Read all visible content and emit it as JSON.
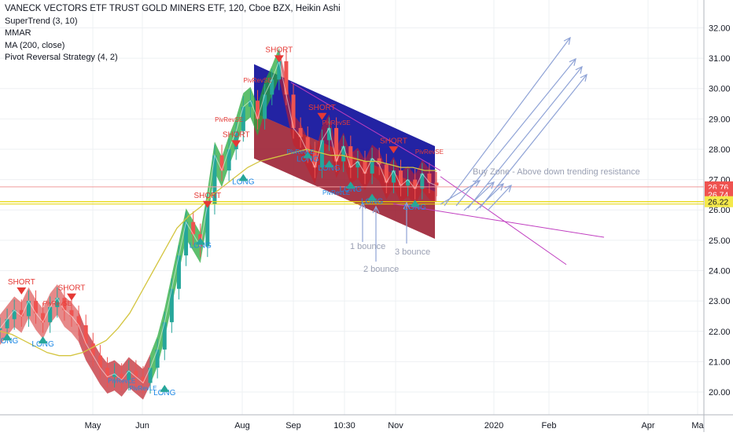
{
  "legend": {
    "title": "VANECK VECTORS ETF TRUST GOLD MINERS ETF, 120, Cboe BZX, Heikin Ashi",
    "indicators": [
      "SuperTrend (3, 10)",
      "MMAR",
      "MA (200, close)",
      "Pivot Reversal Strategy (4, 2)"
    ]
  },
  "chart_data": {
    "type": "line",
    "title": "VANECK VECTORS ETF TRUST GOLD MINERS ETF, 120, Cboe BZX, Heikin Ashi",
    "x_axis_labels": [
      "May",
      "Jun",
      "Aug",
      "Sep",
      "10:30",
      "Nov",
      "2020",
      "Feb",
      "Apr",
      "Ma"
    ],
    "y_axis": {
      "ticks": [
        20.0,
        21.0,
        22.0,
        23.0,
        24.0,
        25.0,
        26.0,
        27.0,
        28.0,
        29.0,
        30.0,
        31.0,
        32.0
      ],
      "range": [
        19.25,
        32.4
      ],
      "position": "right"
    },
    "price_badges": [
      {
        "value": "26.76",
        "color": "#ef5350"
      },
      {
        "value": "26.74",
        "color": "#ef5350"
      },
      {
        "value": "26.22",
        "color": "#f5e94a"
      }
    ],
    "series": [
      {
        "values": [
          22.1,
          22.4,
          22.7,
          22.5,
          23.0,
          22.6,
          22.3,
          22.8,
          23.1,
          22.7,
          22.5,
          22.2,
          21.6,
          21.2,
          20.8,
          20.5,
          20.6,
          20.4,
          20.7,
          20.5,
          20.3,
          20.8,
          21.4,
          22.3,
          23.4,
          24.5,
          25.6,
          25.2,
          24.8,
          26.2,
          27.8,
          27.3,
          28.0,
          28.6,
          29.4,
          29.6,
          29.0,
          29.8,
          30.3,
          30.9,
          29.8,
          28.7,
          28.4,
          27.9,
          27.4,
          28.3,
          28.7,
          27.6,
          28.1,
          27.4,
          27.6,
          27.2,
          27.7,
          27.5,
          26.9,
          27.3,
          26.8,
          27.0,
          26.7,
          27.2,
          26.9,
          26.8
        ]
      }
    ],
    "moving_average": [
      22.0,
      21.9,
      21.7,
      21.5,
      21.3,
      21.2,
      21.2,
      21.3,
      21.5,
      21.7,
      22.1,
      22.6,
      23.3,
      24.0,
      24.7,
      25.4,
      25.8,
      26.1,
      26.5,
      26.8,
      27.1,
      27.4,
      27.6,
      27.7,
      27.8,
      27.9,
      28.0,
      27.9,
      27.8,
      27.8,
      27.7,
      27.6,
      27.6,
      27.5,
      27.4,
      27.4,
      27.3,
      27.3
    ],
    "pivot_labels": [
      {
        "text": "SHORT",
        "i": 3,
        "v": 23.55,
        "color": "#e53935"
      },
      {
        "text": "SHORT",
        "i": 10,
        "v": 23.35,
        "color": "#e53935"
      },
      {
        "text": "LONG",
        "i": 1,
        "v": 21.6,
        "color": "#1e88e5"
      },
      {
        "text": "LONG",
        "i": 6,
        "v": 21.5,
        "color": "#1e88e5"
      },
      {
        "text": "LONG",
        "i": 23,
        "v": 19.9,
        "color": "#1e88e5"
      },
      {
        "text": "LONG",
        "i": 28,
        "v": 24.75,
        "color": "#1e88e5"
      },
      {
        "text": "SHORT",
        "i": 29,
        "v": 26.4,
        "color": "#e53935"
      },
      {
        "text": "SHORT",
        "i": 33,
        "v": 28.4,
        "color": "#e53935"
      },
      {
        "text": "LONG",
        "i": 34,
        "v": 26.85,
        "color": "#1e88e5"
      },
      {
        "text": "SHORT",
        "i": 39,
        "v": 31.2,
        "color": "#e53935"
      },
      {
        "text": "LONG",
        "i": 43,
        "v": 27.6,
        "color": "#1e88e5"
      },
      {
        "text": "SHORT",
        "i": 45,
        "v": 29.3,
        "color": "#e53935"
      },
      {
        "text": "LONG",
        "i": 46,
        "v": 27.3,
        "color": "#1e88e5"
      },
      {
        "text": "LONG",
        "i": 49,
        "v": 26.6,
        "color": "#1e88e5"
      },
      {
        "text": "LONG",
        "i": 52,
        "v": 26.2,
        "color": "#1e88e5"
      },
      {
        "text": "SHORT",
        "i": 55,
        "v": 28.2,
        "color": "#e53935"
      },
      {
        "text": "LONG",
        "i": 58,
        "v": 26.0,
        "color": "#1e88e5"
      },
      {
        "text": "PivRevSE",
        "i": 36,
        "v": 30.2,
        "color": "#e53935"
      },
      {
        "text": "PivRevSE",
        "i": 32,
        "v": 28.9,
        "color": "#e53935"
      },
      {
        "text": "PivRevSE",
        "i": 47,
        "v": 28.8,
        "color": "#e53935"
      },
      {
        "text": "PivRevSE",
        "i": 60,
        "v": 27.85,
        "color": "#e53935"
      },
      {
        "text": "PivRevSE",
        "i": 8,
        "v": 22.85,
        "color": "#e53935"
      },
      {
        "text": "PivRevLE",
        "i": 17,
        "v": 20.3,
        "color": "#1e88e5"
      },
      {
        "text": "PivRevLE",
        "i": 20,
        "v": 20.05,
        "color": "#1e88e5"
      },
      {
        "text": "PivRevLE",
        "i": 42,
        "v": 27.85,
        "color": "#1e88e5"
      },
      {
        "text": "PivRevLE",
        "i": 47,
        "v": 26.5,
        "color": "#1e88e5"
      }
    ],
    "annotations": {
      "buy_zone": "Buy Zone - Above down trending resistance",
      "bounce1": "1 bounce",
      "bounce2": "2 bounce",
      "bounce3": "3 bounce"
    },
    "grid": true
  }
}
